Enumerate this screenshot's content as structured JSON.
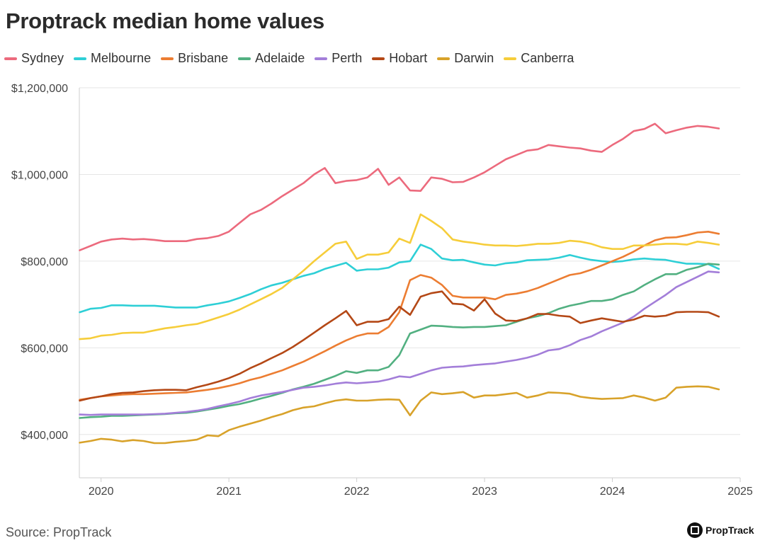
{
  "title": "Proptrack median home values",
  "source": "Source: PropTrack",
  "brand": "PropTrack",
  "chart_data": {
    "type": "line",
    "title": "Proptrack median home values",
    "xlabel": "",
    "ylabel": "",
    "x_ticks": [
      "2020",
      "2021",
      "2022",
      "2023",
      "2024",
      "2025"
    ],
    "x_tick_values": [
      2020,
      2021,
      2022,
      2023,
      2024,
      2025
    ],
    "xlim": [
      2019.83,
      2025
    ],
    "y_ticks": [
      "$400,000",
      "$600,000",
      "$800,000",
      "$1,000,000",
      "$1,200,000"
    ],
    "y_tick_values": [
      400000,
      600000,
      800000,
      1000000,
      1200000
    ],
    "ylim": [
      300000,
      1200000
    ],
    "grid": "horizontal",
    "legend": "top-left",
    "x": [
      2019.833,
      2019.917,
      2020.0,
      2020.083,
      2020.167,
      2020.25,
      2020.333,
      2020.417,
      2020.5,
      2020.583,
      2020.667,
      2020.75,
      2020.833,
      2020.917,
      2021.0,
      2021.083,
      2021.167,
      2021.25,
      2021.333,
      2021.417,
      2021.5,
      2021.583,
      2021.667,
      2021.75,
      2021.833,
      2021.917,
      2022.0,
      2022.083,
      2022.167,
      2022.25,
      2022.333,
      2022.417,
      2022.5,
      2022.583,
      2022.667,
      2022.75,
      2022.833,
      2022.917,
      2023.0,
      2023.083,
      2023.167,
      2023.25,
      2023.333,
      2023.417,
      2023.5,
      2023.583,
      2023.667,
      2023.75,
      2023.833,
      2023.917,
      2024.0,
      2024.083,
      2024.167,
      2024.25,
      2024.333,
      2024.417,
      2024.5,
      2024.583,
      2024.667,
      2024.75,
      2024.833
    ],
    "series": [
      {
        "name": "Sydney",
        "color": "#ec6a7d",
        "values": [
          825000,
          835000,
          845000,
          850000,
          852000,
          850000,
          851000,
          849000,
          846000,
          846000,
          846000,
          851000,
          853000,
          858000,
          868000,
          888000,
          908000,
          918000,
          933000,
          950000,
          965000,
          980000,
          1000000,
          1015000,
          980000,
          985000,
          987000,
          993000,
          1013000,
          976000,
          993000,
          963000,
          962000,
          993000,
          990000,
          982000,
          983000,
          993000,
          1005000,
          1020000,
          1035000,
          1045000,
          1055000,
          1058000,
          1068000,
          1065000,
          1062000,
          1060000,
          1055000,
          1052000,
          1068000,
          1082000,
          1100000,
          1105000,
          1117000,
          1095000,
          1102000,
          1108000,
          1112000,
          1110000,
          1106000
        ]
      },
      {
        "name": "Melbourne",
        "color": "#2ecfd6",
        "values": [
          682000,
          690000,
          692000,
          698000,
          698000,
          697000,
          697000,
          697000,
          695000,
          693000,
          693000,
          693000,
          698000,
          702000,
          707000,
          715000,
          724000,
          735000,
          744000,
          750000,
          758000,
          766000,
          772000,
          782000,
          789000,
          796000,
          778000,
          781000,
          781000,
          785000,
          797000,
          800000,
          838000,
          828000,
          806000,
          802000,
          803000,
          797000,
          792000,
          790000,
          795000,
          797000,
          802000,
          803000,
          804000,
          808000,
          814000,
          808000,
          803000,
          800000,
          798000,
          800000,
          804000,
          806000,
          804000,
          803000,
          798000,
          794000,
          794000,
          793000,
          782000
        ]
      },
      {
        "name": "Brisbane",
        "color": "#ec7d32",
        "values": [
          480000,
          484000,
          488000,
          490000,
          492000,
          493000,
          493000,
          494000,
          495000,
          496000,
          497000,
          500000,
          503000,
          507000,
          512000,
          518000,
          526000,
          532000,
          540000,
          548000,
          558000,
          568000,
          580000,
          592000,
          605000,
          617000,
          627000,
          633000,
          633000,
          648000,
          682000,
          756000,
          768000,
          762000,
          745000,
          720000,
          716000,
          716000,
          716000,
          712000,
          722000,
          725000,
          730000,
          738000,
          748000,
          758000,
          768000,
          772000,
          780000,
          790000,
          800000,
          810000,
          822000,
          836000,
          848000,
          854000,
          855000,
          860000,
          866000,
          868000,
          863000
        ]
      },
      {
        "name": "Adelaide",
        "color": "#52b081",
        "values": [
          438000,
          440000,
          441000,
          443000,
          443000,
          444000,
          445000,
          446000,
          447000,
          449000,
          450000,
          453000,
          457000,
          461000,
          466000,
          470000,
          476000,
          483000,
          489000,
          496000,
          504000,
          510000,
          517000,
          526000,
          535000,
          546000,
          542000,
          548000,
          548000,
          556000,
          583000,
          633000,
          642000,
          651000,
          650000,
          648000,
          647000,
          648000,
          648000,
          650000,
          652000,
          660000,
          668000,
          673000,
          680000,
          690000,
          697000,
          702000,
          708000,
          708000,
          712000,
          722000,
          730000,
          745000,
          758000,
          770000,
          770000,
          780000,
          786000,
          794000,
          792000
        ]
      },
      {
        "name": "Perth",
        "color": "#a37ed9",
        "values": [
          446000,
          445000,
          446000,
          446000,
          446000,
          446000,
          446000,
          447000,
          448000,
          450000,
          452000,
          455000,
          459000,
          465000,
          470000,
          476000,
          484000,
          490000,
          494000,
          498000,
          503000,
          508000,
          510000,
          513000,
          517000,
          520000,
          518000,
          520000,
          522000,
          527000,
          534000,
          532000,
          540000,
          548000,
          554000,
          556000,
          557000,
          560000,
          562000,
          564000,
          568000,
          572000,
          577000,
          584000,
          594000,
          597000,
          606000,
          618000,
          626000,
          638000,
          648000,
          658000,
          672000,
          690000,
          706000,
          722000,
          740000,
          752000,
          764000,
          776000,
          774000
        ]
      },
      {
        "name": "Hobart",
        "color": "#b44816",
        "values": [
          478000,
          484000,
          488000,
          493000,
          496000,
          497000,
          500000,
          502000,
          503000,
          503000,
          502000,
          509000,
          515000,
          522000,
          530000,
          540000,
          553000,
          564000,
          576000,
          588000,
          602000,
          618000,
          635000,
          652000,
          668000,
          685000,
          652000,
          660000,
          660000,
          666000,
          695000,
          676000,
          718000,
          726000,
          730000,
          702000,
          700000,
          686000,
          712000,
          679000,
          663000,
          662000,
          668000,
          678000,
          678000,
          674000,
          672000,
          657000,
          663000,
          668000,
          664000,
          660000,
          665000,
          674000,
          672000,
          674000,
          682000,
          683000,
          683000,
          682000,
          672000
        ]
      },
      {
        "name": "Darwin",
        "color": "#d8a22a",
        "values": [
          381000,
          385000,
          390000,
          388000,
          384000,
          387000,
          385000,
          380000,
          380000,
          383000,
          385000,
          388000,
          398000,
          396000,
          410000,
          418000,
          425000,
          432000,
          440000,
          447000,
          456000,
          462000,
          465000,
          472000,
          478000,
          481000,
          478000,
          478000,
          480000,
          481000,
          480000,
          444000,
          478000,
          497000,
          493000,
          495000,
          498000,
          485000,
          490000,
          490000,
          493000,
          496000,
          485000,
          490000,
          497000,
          496000,
          494000,
          487000,
          484000,
          482000,
          483000,
          484000,
          490000,
          485000,
          478000,
          485000,
          508000,
          510000,
          511000,
          510000,
          504000
        ]
      },
      {
        "name": "Canberra",
        "color": "#f6cd3a",
        "values": [
          620000,
          622000,
          628000,
          630000,
          634000,
          635000,
          635000,
          640000,
          645000,
          648000,
          652000,
          655000,
          662000,
          670000,
          678000,
          688000,
          700000,
          712000,
          724000,
          738000,
          758000,
          778000,
          800000,
          820000,
          840000,
          845000,
          805000,
          815000,
          815000,
          820000,
          852000,
          842000,
          908000,
          893000,
          876000,
          850000,
          845000,
          842000,
          838000,
          836000,
          836000,
          835000,
          837000,
          840000,
          840000,
          842000,
          847000,
          845000,
          840000,
          832000,
          828000,
          828000,
          836000,
          836000,
          838000,
          840000,
          840000,
          838000,
          845000,
          842000,
          838000
        ]
      }
    ]
  }
}
